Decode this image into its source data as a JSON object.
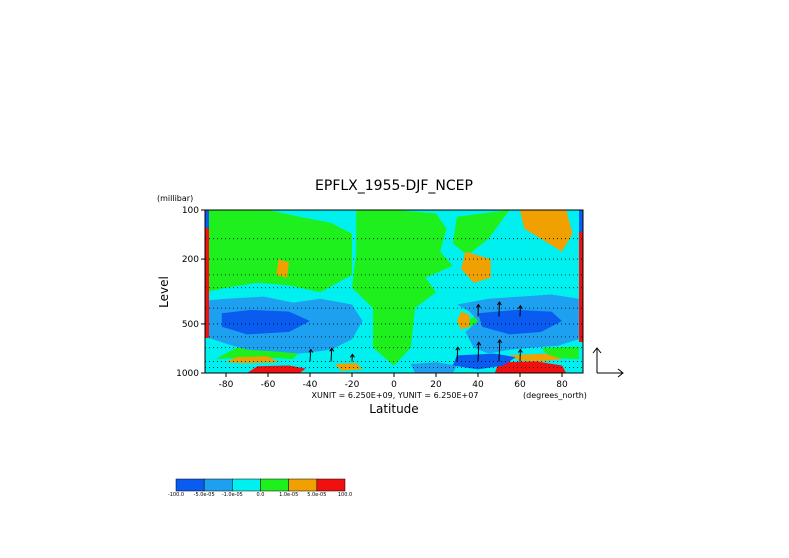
{
  "chart_data": {
    "type": "heatmap",
    "title": "EPFLX_1955-DJF_NCEP",
    "xlabel": "Latitude",
    "ylabel": "Level",
    "y_units": "(millibar)",
    "x_units": "(degrees_north)",
    "xlim": [
      -90,
      90
    ],
    "ylim": [
      1000,
      100
    ],
    "y_scale": "log",
    "x_ticks": [
      "-80",
      "-60",
      "-40",
      "-20",
      "0",
      "20",
      "40",
      "60",
      "80"
    ],
    "x_tick_values": [
      -80,
      -60,
      -40,
      -20,
      0,
      20,
      40,
      60,
      80
    ],
    "y_ticks": [
      "100",
      "200",
      "500",
      "1000"
    ],
    "y_tick_values": [
      100,
      200,
      500,
      1000
    ],
    "vector_units_text": "XUNIT = 6.250E+09, YUNIT = 6.250E+07",
    "colorbar": {
      "labels": [
        "-100.0",
        "-5.0e-05",
        "-1.0e-05",
        "0.0",
        "1.0e-05",
        "5.0e-05",
        "100.0"
      ],
      "colors": [
        "#0a5cf0",
        "#1ea0f0",
        "#00f0f0",
        "#1ef01e",
        "#f0a000",
        "#f01010"
      ]
    },
    "fill_levels_note": "filled contours of divergence; arrows show EP flux vectors",
    "regions": [
      {
        "level": "positive_mid",
        "points": [
          [
            -90,
            100
          ],
          [
            -75,
            100
          ],
          [
            -60,
            100
          ],
          [
            -45,
            110
          ],
          [
            -30,
            120
          ],
          [
            -20,
            140
          ],
          [
            -20,
            250
          ],
          [
            -35,
            320
          ],
          [
            -50,
            290
          ],
          [
            -65,
            280
          ],
          [
            -80,
            300
          ],
          [
            -90,
            320
          ]
        ]
      },
      {
        "level": "positive_mid",
        "points": [
          [
            -18,
            100
          ],
          [
            0,
            100
          ],
          [
            20,
            105
          ],
          [
            25,
            130
          ],
          [
            22,
            180
          ],
          [
            28,
            220
          ],
          [
            15,
            260
          ],
          [
            20,
            320
          ],
          [
            10,
            400
          ],
          [
            8,
            700
          ],
          [
            0,
            900
          ],
          [
            -10,
            700
          ],
          [
            -10,
            400
          ],
          [
            -20,
            300
          ],
          [
            -18,
            180
          ]
        ]
      },
      {
        "level": "positive_mid",
        "points": [
          [
            30,
            110
          ],
          [
            55,
            100
          ],
          [
            45,
            150
          ],
          [
            35,
            190
          ],
          [
            28,
            160
          ]
        ]
      },
      {
        "level": "positive_mid",
        "points": [
          [
            42,
            420
          ],
          [
            45,
            500
          ],
          [
            48,
            600
          ],
          [
            45,
            700
          ],
          [
            38,
            550
          ],
          [
            35,
            480
          ]
        ]
      },
      {
        "level": "positive_mid",
        "points": [
          [
            -75,
            700
          ],
          [
            -55,
            680
          ],
          [
            -45,
            740
          ],
          [
            -48,
            820
          ],
          [
            -65,
            800
          ],
          [
            -85,
            820
          ]
        ]
      },
      {
        "level": "positive_mid",
        "points": [
          [
            70,
            700
          ],
          [
            88,
            690
          ],
          [
            88,
            820
          ],
          [
            75,
            810
          ]
        ]
      },
      {
        "level": "positive_high",
        "points": [
          [
            -55,
            200
          ],
          [
            -50,
            210
          ],
          [
            -51,
            260
          ],
          [
            -56,
            250
          ]
        ]
      },
      {
        "level": "positive_high",
        "points": [
          [
            34,
            180
          ],
          [
            46,
            200
          ],
          [
            46,
            260
          ],
          [
            38,
            280
          ],
          [
            32,
            230
          ]
        ]
      },
      {
        "level": "positive_high",
        "points": [
          [
            32,
            420
          ],
          [
            36,
            440
          ],
          [
            36,
            520
          ],
          [
            32,
            540
          ],
          [
            30,
            480
          ]
        ]
      },
      {
        "level": "positive_high",
        "points": [
          [
            60,
            100
          ],
          [
            82,
            100
          ],
          [
            85,
            140
          ],
          [
            80,
            180
          ],
          [
            70,
            150
          ],
          [
            62,
            130
          ]
        ]
      },
      {
        "level": "positive_high",
        "points": [
          [
            -75,
            800
          ],
          [
            -60,
            790
          ],
          [
            -55,
            860
          ],
          [
            -70,
            870
          ],
          [
            -80,
            860
          ]
        ]
      },
      {
        "level": "positive_high",
        "points": [
          [
            -28,
            880
          ],
          [
            -18,
            870
          ],
          [
            -15,
            950
          ],
          [
            -25,
            970
          ]
        ]
      },
      {
        "level": "positive_high",
        "points": [
          [
            55,
            780
          ],
          [
            72,
            760
          ],
          [
            80,
            820
          ],
          [
            70,
            850
          ],
          [
            60,
            840
          ]
        ]
      },
      {
        "level": "positive_max",
        "points": [
          [
            -65,
            910
          ],
          [
            -50,
            900
          ],
          [
            -42,
            940
          ],
          [
            -45,
            1000
          ],
          [
            -70,
            1000
          ]
        ]
      },
      {
        "level": "positive_max",
        "points": [
          [
            50,
            860
          ],
          [
            68,
            850
          ],
          [
            80,
            900
          ],
          [
            82,
            1000
          ],
          [
            48,
            1000
          ]
        ]
      },
      {
        "level": "negative_mid",
        "points": [
          [
            -90,
            360
          ],
          [
            -80,
            350
          ],
          [
            -62,
            340
          ],
          [
            -48,
            370
          ],
          [
            -35,
            350
          ],
          [
            -20,
            380
          ],
          [
            -15,
            480
          ],
          [
            -20,
            620
          ],
          [
            -30,
            720
          ],
          [
            -45,
            760
          ],
          [
            -55,
            740
          ],
          [
            -70,
            720
          ],
          [
            -80,
            660
          ],
          [
            -90,
            600
          ]
        ]
      },
      {
        "level": "negative_mid",
        "points": [
          [
            30,
            380
          ],
          [
            45,
            350
          ],
          [
            60,
            340
          ],
          [
            75,
            330
          ],
          [
            88,
            350
          ],
          [
            88,
            620
          ],
          [
            78,
            680
          ],
          [
            65,
            700
          ],
          [
            55,
            720
          ],
          [
            45,
            760
          ],
          [
            38,
            700
          ],
          [
            34,
            560
          ],
          [
            40,
            480
          ],
          [
            36,
            420
          ]
        ]
      },
      {
        "level": "negative_mid",
        "points": [
          [
            8,
            880
          ],
          [
            20,
            860
          ],
          [
            30,
            900
          ],
          [
            28,
            1000
          ],
          [
            10,
            1000
          ]
        ]
      },
      {
        "level": "negative_high",
        "points": [
          [
            -82,
            430
          ],
          [
            -68,
            410
          ],
          [
            -50,
            420
          ],
          [
            -40,
            480
          ],
          [
            -50,
            560
          ],
          [
            -70,
            580
          ],
          [
            -82,
            520
          ]
        ]
      },
      {
        "level": "negative_high",
        "points": [
          [
            40,
            430
          ],
          [
            58,
            410
          ],
          [
            75,
            420
          ],
          [
            80,
            480
          ],
          [
            70,
            560
          ],
          [
            55,
            580
          ],
          [
            42,
            520
          ]
        ]
      },
      {
        "level": "negative_high",
        "points": [
          [
            30,
            780
          ],
          [
            48,
            760
          ],
          [
            58,
            800
          ],
          [
            52,
            900
          ],
          [
            40,
            950
          ],
          [
            28,
            900
          ]
        ]
      }
    ],
    "vector_arrows": [
      [
        -40,
        850,
        0.2,
        1.0
      ],
      [
        -30,
        850,
        0.2,
        1.1
      ],
      [
        -20,
        850,
        0.1,
        0.6
      ],
      [
        30,
        850,
        0.2,
        1.2
      ],
      [
        40,
        850,
        0.2,
        1.6
      ],
      [
        50,
        850,
        0.2,
        1.8
      ],
      [
        60,
        850,
        0.1,
        1.0
      ],
      [
        40,
        450,
        0.1,
        1.0
      ],
      [
        50,
        450,
        0.1,
        1.2
      ],
      [
        60,
        450,
        0.1,
        0.9
      ]
    ]
  }
}
